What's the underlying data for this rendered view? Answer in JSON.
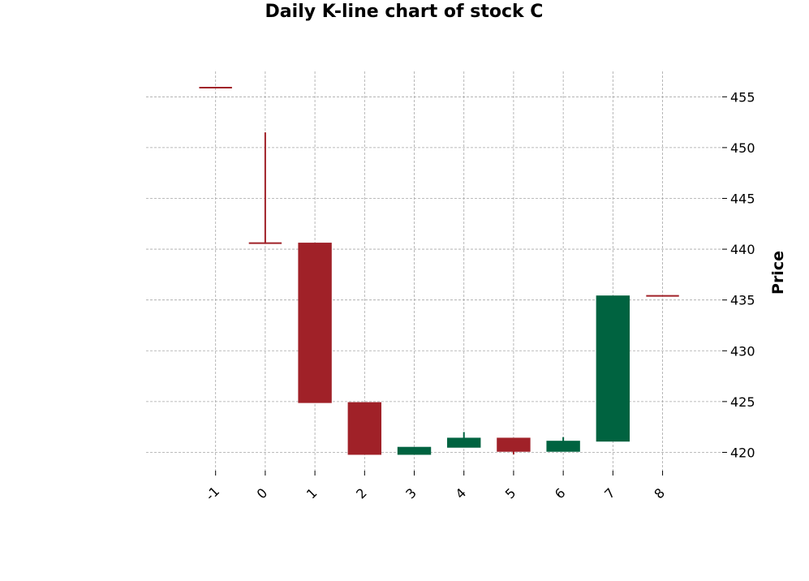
{
  "chart_data": {
    "type": "candlestick",
    "title": "Daily K-line chart of stock C",
    "xlabel": "",
    "ylabel": "Price",
    "x": [
      -1,
      0,
      1,
      2,
      3,
      4,
      5,
      6,
      7,
      8
    ],
    "x_tick_labels": [
      "-1",
      "0",
      "1",
      "2",
      "3",
      "4",
      "5",
      "6",
      "7",
      "8"
    ],
    "y_ticks": [
      420,
      425,
      430,
      435,
      440,
      445,
      450,
      455
    ],
    "ylim": [
      418.2,
      457.5
    ],
    "xlim": [
      -2.4,
      9.2
    ],
    "grid": true,
    "y_axis_position": "right",
    "up_color": "#006340",
    "down_color": "#a02128",
    "candles": [
      {
        "x": -1,
        "open": 455.9,
        "high": 455.9,
        "low": 455.9,
        "close": 455.9,
        "direction": "down"
      },
      {
        "x": 0,
        "open": 440.6,
        "high": 451.5,
        "low": 440.6,
        "close": 440.6,
        "direction": "down"
      },
      {
        "x": 1,
        "open": 440.6,
        "high": 440.6,
        "low": 424.9,
        "close": 424.9,
        "direction": "down"
      },
      {
        "x": 2,
        "open": 424.9,
        "high": 424.9,
        "low": 419.8,
        "close": 419.8,
        "direction": "down"
      },
      {
        "x": 3,
        "open": 419.8,
        "high": 420.5,
        "low": 419.8,
        "close": 420.5,
        "direction": "up"
      },
      {
        "x": 4,
        "open": 420.5,
        "high": 422.0,
        "low": 420.5,
        "close": 421.4,
        "direction": "up"
      },
      {
        "x": 5,
        "open": 421.4,
        "high": 421.4,
        "low": 419.8,
        "close": 420.1,
        "direction": "down"
      },
      {
        "x": 6,
        "open": 420.1,
        "high": 421.5,
        "low": 420.1,
        "close": 421.1,
        "direction": "up"
      },
      {
        "x": 7,
        "open": 421.1,
        "high": 435.4,
        "low": 421.1,
        "close": 435.4,
        "direction": "up"
      },
      {
        "x": 8,
        "open": 435.4,
        "high": 435.4,
        "low": 435.4,
        "close": 435.4,
        "direction": "down"
      }
    ]
  }
}
